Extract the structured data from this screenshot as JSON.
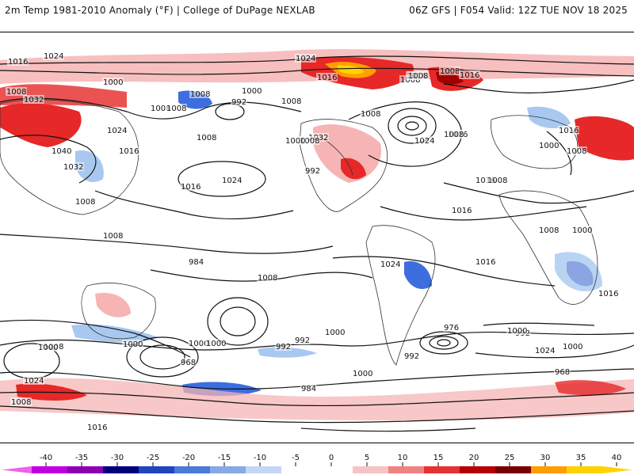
{
  "header": {
    "title_left": "2m Temp 1981-2010 Anomaly (°F) | College of DuPage NEXLAB",
    "title_right": "06Z GFS | F054 Valid: 12Z TUE NOV 18 2025"
  },
  "map": {
    "isobar_labels": [
      "1024",
      "1016",
      "1000",
      "1008",
      "1032",
      "1024",
      "1040",
      "1032",
      "1016",
      "1008",
      "1008",
      "1008",
      "1000",
      "992",
      "1008",
      "1024",
      "1008",
      "1016",
      "1024",
      "1008",
      "1032",
      "1016",
      "1008",
      "1000",
      "1008",
      "1024",
      "1016",
      "1016",
      "1008",
      "1008",
      "1008",
      "1016",
      "1016",
      "1008",
      "1008",
      "1016",
      "1000",
      "1008",
      "1008",
      "1000",
      "1016",
      "992",
      "1008",
      "984",
      "976",
      "992",
      "1000",
      "968",
      "1016",
      "968",
      "1000",
      "1000",
      "1000",
      "992",
      "984",
      "1000",
      "992",
      "1024",
      "1000",
      "1008",
      "1000",
      "1016",
      "1024",
      "1008",
      "1024",
      "1000",
      "992",
      "1016",
      "1008"
    ]
  },
  "colors": {
    "cold_extreme": "#ff3cf0",
    "cold_purple": "#9b00d2",
    "cold_navy": "#1a1aa8",
    "cold_blue": "#3c6ee0",
    "cold_light": "#a8c8f0",
    "warm_light": "#f6b4b4",
    "warm_red": "#e62828",
    "warm_dark": "#a00000",
    "warm_orange": "#ffa000",
    "warm_yellow": "#ffd200"
  },
  "colorbar": {
    "ticks": [
      "-40",
      "-35",
      "-30",
      "-25",
      "-20",
      "-15",
      "-10",
      "-5",
      "0",
      "5",
      "10",
      "15",
      "20",
      "25",
      "30",
      "35",
      "40"
    ],
    "colors": [
      "#ee62ee",
      "#c000e0",
      "#8c00b4",
      "#00007a",
      "#1e46be",
      "#4b7ad8",
      "#87a9e6",
      "#c4d6f3",
      "#ffffff",
      "#ffffff",
      "#f6c4c4",
      "#f08282",
      "#e63232",
      "#b40000",
      "#780000",
      "#ff9c00",
      "#ffd200"
    ]
  }
}
